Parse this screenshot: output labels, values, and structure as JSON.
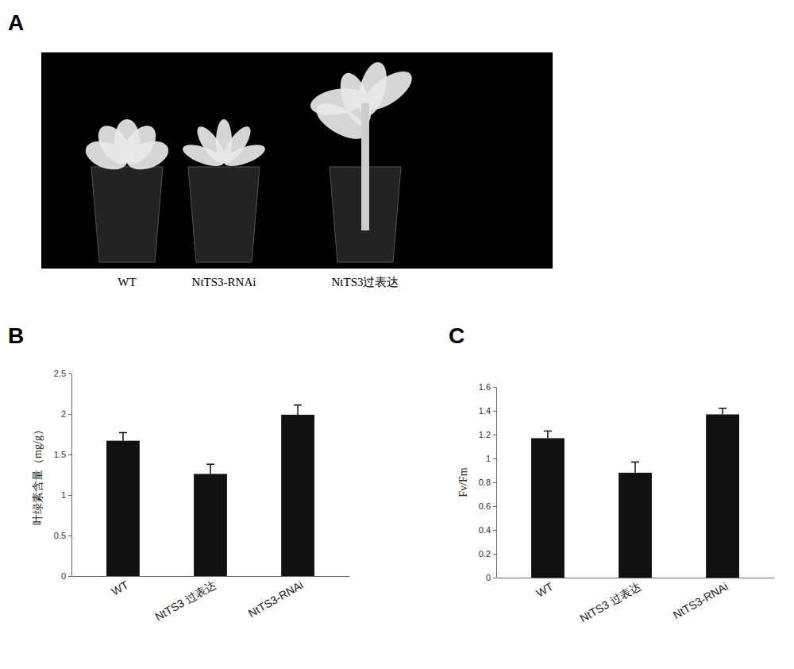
{
  "photo": {
    "panel": "A",
    "labels": [
      "WT",
      "NtTS3-RNAi",
      "NtTS3过表达"
    ]
  },
  "chart_data": [
    {
      "type": "bar",
      "panel": "B",
      "y_label": "叶绿素含量（mg/g）",
      "categories": [
        "WT",
        "NtTS3 过表达",
        "NtTS3-RNAi"
      ],
      "values": [
        1.67,
        1.26,
        1.99
      ],
      "errors": [
        0.1,
        0.12,
        0.12
      ],
      "color": "#111111",
      "ylim": [
        0,
        2.5
      ],
      "yticks": [
        0,
        0.5,
        1,
        1.5,
        2,
        2.5
      ],
      "grid": false
    },
    {
      "type": "bar",
      "panel": "C",
      "y_label": "Fv/Fm",
      "categories": [
        "WT",
        "NtTS3 过表达",
        "NtTS3-RNAi"
      ],
      "values": [
        1.17,
        0.88,
        1.37
      ],
      "errors": [
        0.06,
        0.09,
        0.05
      ],
      "color": "#111111",
      "ylim": [
        0,
        1.6
      ],
      "yticks": [
        0,
        0.2,
        0.4,
        0.6,
        0.8,
        1,
        1.2,
        1.4,
        1.6
      ],
      "grid": false
    }
  ]
}
